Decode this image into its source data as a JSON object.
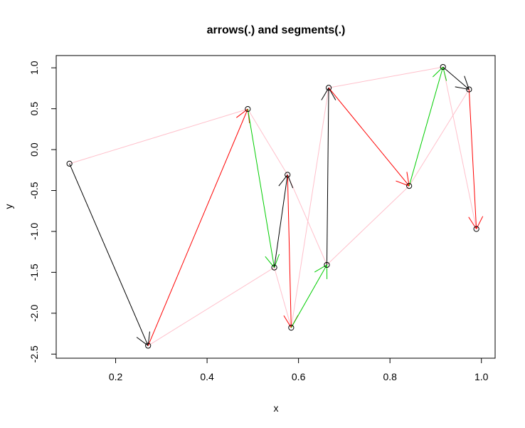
{
  "chart_data": {
    "type": "scatter",
    "title": "arrows(.) and segments(.)",
    "xlabel": "x",
    "ylabel": "y",
    "xlim": [
      0.07,
      1.03
    ],
    "ylim": [
      -2.55,
      1.15
    ],
    "xticks": [
      0.2,
      0.4,
      0.6,
      0.8,
      1.0
    ],
    "xtick_labels": [
      "0.2",
      "0.4",
      "0.6",
      "0.8",
      "1.0"
    ],
    "yticks": [
      1.0,
      0.5,
      0.0,
      -0.5,
      -1.0,
      -1.5,
      -2.0,
      -2.5
    ],
    "ytick_labels": [
      "1.0",
      "0.5",
      "0.0",
      "-0.5",
      "-1.0",
      "-1.5",
      "-2.0",
      "-2.5"
    ],
    "points": [
      {
        "x": 0.099,
        "y": -0.172
      },
      {
        "x": 0.271,
        "y": -2.397
      },
      {
        "x": 0.489,
        "y": 0.496
      },
      {
        "x": 0.547,
        "y": -1.441
      },
      {
        "x": 0.576,
        "y": -0.308
      },
      {
        "x": 0.584,
        "y": -2.177
      },
      {
        "x": 0.662,
        "y": -1.409
      },
      {
        "x": 0.666,
        "y": 0.756
      },
      {
        "x": 0.842,
        "y": -0.444
      },
      {
        "x": 0.916,
        "y": 1.01
      },
      {
        "x": 0.973,
        "y": 0.736
      },
      {
        "x": 0.989,
        "y": -0.97
      }
    ],
    "arrow_colors": [
      "black",
      "red",
      "green",
      "black",
      "red",
      "green",
      "black",
      "red",
      "green",
      "black",
      "red"
    ],
    "segment_color": "pink",
    "segments": [
      [
        0,
        2
      ],
      [
        2,
        4
      ],
      [
        4,
        6
      ],
      [
        6,
        8
      ],
      [
        8,
        10
      ],
      [
        1,
        3
      ],
      [
        3,
        5
      ],
      [
        5,
        7
      ],
      [
        7,
        9
      ],
      [
        9,
        11
      ]
    ],
    "colors": {
      "black": "#000000",
      "red": "#ff0000",
      "green": "#00cd00",
      "pink": "#ffc0cb",
      "axis": "#000000"
    },
    "grid": false
  }
}
